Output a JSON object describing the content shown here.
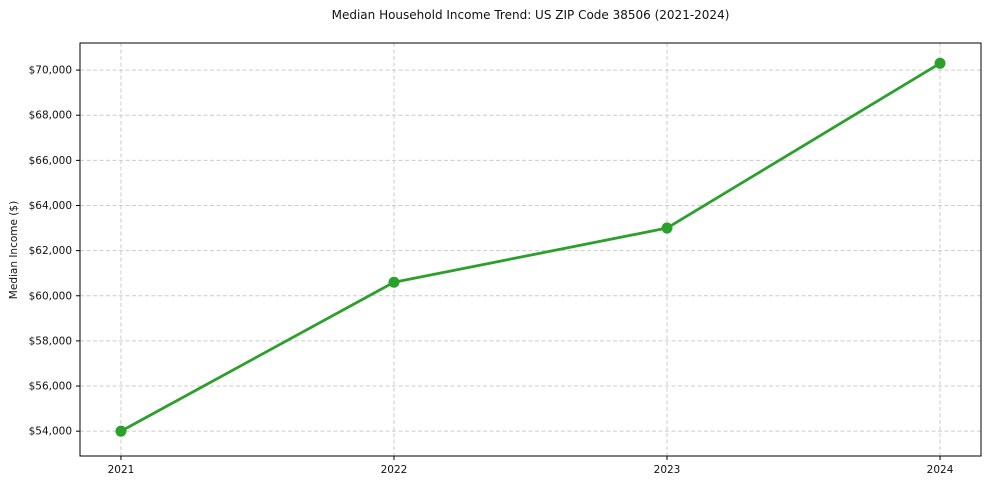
{
  "figure": {
    "title": "Median Household Income Trend: US ZIP Code 38506 (2021-2024)",
    "ylabel": "Median Income ($)"
  },
  "chart_data": {
    "type": "line",
    "title": "Median Household Income Trend: US ZIP Code 38506 (2021-2024)",
    "xlabel": "",
    "ylabel": "Median Income ($)",
    "x": [
      2021,
      2022,
      2023,
      2024
    ],
    "xtick_labels": [
      "2021",
      "2022",
      "2023",
      "2024"
    ],
    "series": [
      {
        "name": "Median Household Income",
        "values": [
          54000,
          60600,
          63000,
          70300
        ]
      }
    ],
    "yticks": [
      54000,
      56000,
      58000,
      60000,
      62000,
      64000,
      66000,
      68000,
      70000
    ],
    "ytick_labels": [
      "$54,000",
      "$56,000",
      "$58,000",
      "$60,000",
      "$62,000",
      "$64,000",
      "$66,000",
      "$68,000",
      "$70,000"
    ],
    "xlim": [
      2020.85,
      2024.15
    ],
    "ylim": [
      52900,
      71200
    ],
    "grid": true,
    "legend_position": "none",
    "colors": {
      "line": "#2ca02c",
      "marker": "#2ca02c",
      "grid": "#cccccc",
      "spine": "#000000",
      "tick_text": "#111111",
      "background": "#ffffff"
    }
  }
}
